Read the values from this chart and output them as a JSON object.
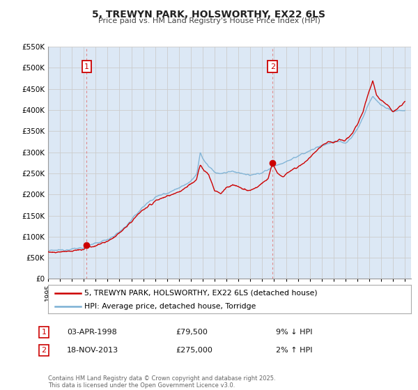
{
  "title": "5, TREWYN PARK, HOLSWORTHY, EX22 6LS",
  "subtitle": "Price paid vs. HM Land Registry's House Price Index (HPI)",
  "legend_label_red": "5, TREWYN PARK, HOLSWORTHY, EX22 6LS (detached house)",
  "legend_label_blue": "HPI: Average price, detached house, Torridge",
  "annotation1_date": "03-APR-1998",
  "annotation1_price": "£79,500",
  "annotation1_hpi": "9% ↓ HPI",
  "annotation2_date": "18-NOV-2013",
  "annotation2_price": "£275,000",
  "annotation2_hpi": "2% ↑ HPI",
  "footer": "Contains HM Land Registry data © Crown copyright and database right 2025.\nThis data is licensed under the Open Government Licence v3.0.",
  "xmin": 1995.0,
  "xmax": 2025.5,
  "ymin": 0,
  "ymax": 550000,
  "yticks": [
    0,
    50000,
    100000,
    150000,
    200000,
    250000,
    300000,
    350000,
    400000,
    450000,
    500000,
    550000
  ],
  "sale1_x": 1998.25,
  "sale1_y": 79500,
  "sale2_x": 2013.88,
  "sale2_y": 275000,
  "red_color": "#cc0000",
  "blue_color": "#7ab0d4",
  "vline_color": "#e08080",
  "grid_color": "#cccccc",
  "chart_bg": "#dce8f5",
  "background_color": "#ffffff",
  "ann_box_color": "#cc0000"
}
